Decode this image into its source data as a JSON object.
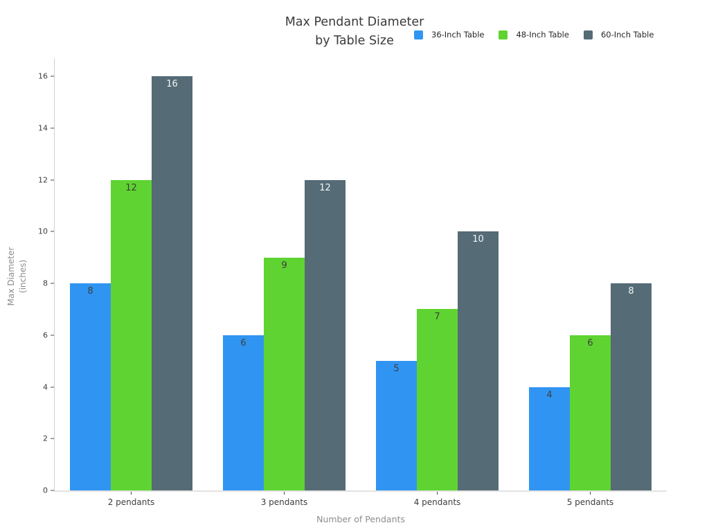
{
  "chart_data": {
    "type": "bar",
    "title": [
      "Max Pendant Diameter",
      "by Table Size"
    ],
    "xlabel": "Number of Pendants",
    "ylabel_lines": [
      "Max Diameter",
      "(inches)"
    ],
    "categories": [
      "2 pendants",
      "3 pendants",
      "4 pendants",
      "5 pendants"
    ],
    "series": [
      {
        "name": "36-Inch Table",
        "color": "#3095f2",
        "label_color": "#3d3d3d",
        "values": [
          8,
          6,
          5,
          4
        ]
      },
      {
        "name": "48-Inch Table",
        "color": "#5fd331",
        "label_color": "#3d3d3d",
        "values": [
          12,
          9,
          7,
          6
        ]
      },
      {
        "name": "60-Inch Table",
        "color": "#556b76",
        "label_color": "#f4f8f9",
        "values": [
          16,
          12,
          10,
          8
        ]
      }
    ],
    "yticks": [
      0,
      2,
      4,
      6,
      8,
      10,
      12,
      14,
      16
    ],
    "ylim": [
      0,
      16.7
    ],
    "grid": false,
    "legend_position": "top-right",
    "background_color": "#ffffff"
  }
}
